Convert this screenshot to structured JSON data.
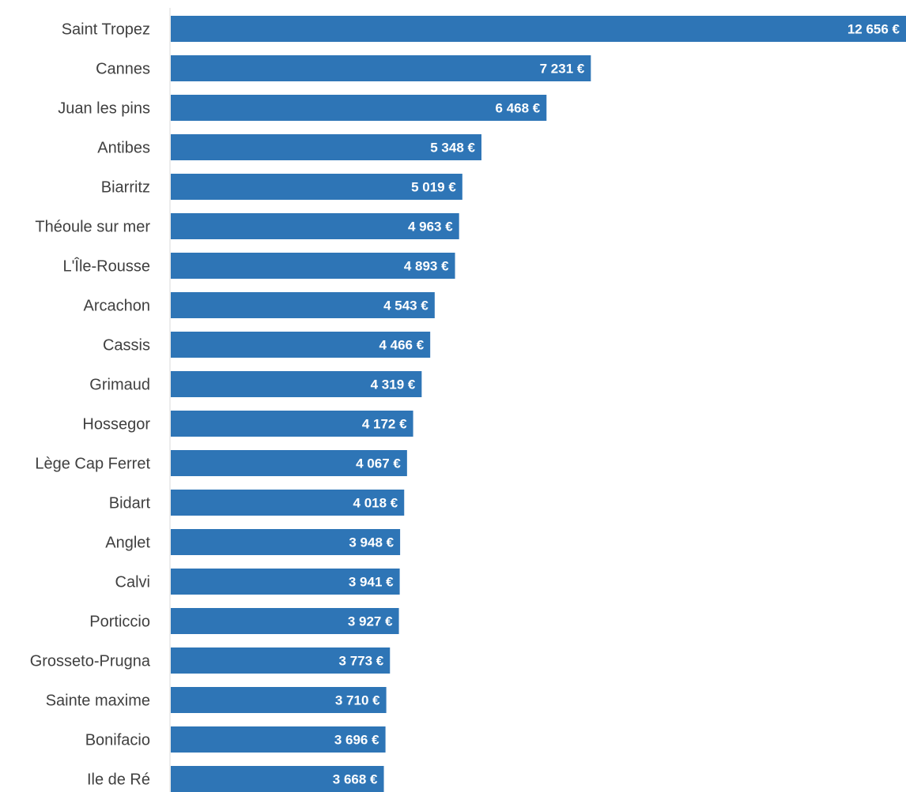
{
  "chart_data": {
    "type": "bar",
    "orientation": "horizontal",
    "title": "",
    "xlabel": "",
    "ylabel": "",
    "grid": false,
    "legend": "none",
    "bar_color": "#2e75b6",
    "value_label_color": "#ffffff",
    "category_label_color": "#404040",
    "axis_color": "#d9d9d9",
    "xlim": [
      0,
      12656
    ],
    "categories": [
      "Saint Tropez",
      "Cannes",
      "Juan les pins",
      "Antibes",
      "Biarritz",
      "Théoule sur mer",
      "L'Île-Rousse",
      "Arcachon",
      "Cassis",
      "Grimaud",
      "Hossegor",
      "Lège Cap Ferret",
      "Bidart",
      "Anglet",
      "Calvi",
      "Porticcio",
      "Grosseto-Prugna",
      "Sainte maxime",
      "Bonifacio",
      "Ile de Ré"
    ],
    "values": [
      12656,
      7231,
      6468,
      5348,
      5019,
      4963,
      4893,
      4543,
      4466,
      4319,
      4172,
      4067,
      4018,
      3948,
      3941,
      3927,
      3773,
      3710,
      3696,
      3668
    ],
    "value_labels": [
      "12 656 €",
      "7 231 €",
      "6 468 €",
      "5 348 €",
      "5 019 €",
      "4 963 €",
      "4 893 €",
      "4 543 €",
      "4 466 €",
      "4 319 €",
      "4 172 €",
      "4 067 €",
      "4 018 €",
      "3 948 €",
      "3 941 €",
      "3 927 €",
      "3 773 €",
      "3 710 €",
      "3 696 €",
      "3 668 €"
    ]
  }
}
